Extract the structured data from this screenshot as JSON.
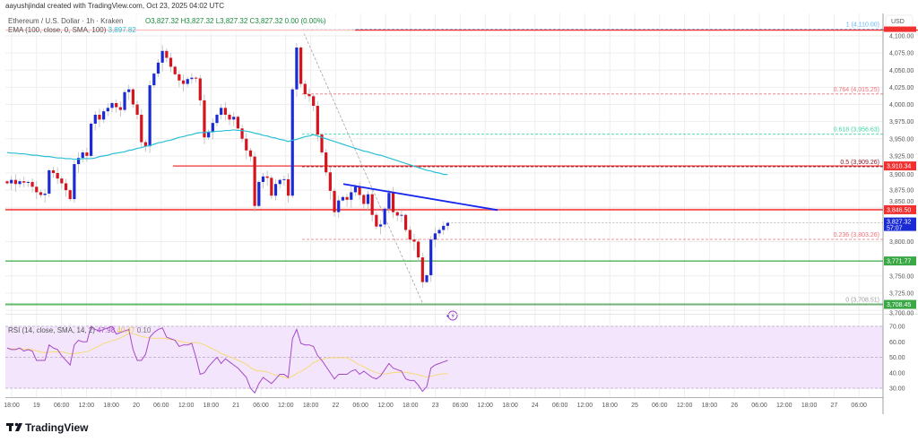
{
  "header": {
    "attribution": "aayushjindal created with TradingView.com, Oct 23, 2025 04:02 UTC",
    "symbol": "Ethereum / U.S. Dollar · 1h · Kraken",
    "ohlc": "O3,827.32  H3,827.32  L3,827.32  C3,827.32  0.00 (0.00%)",
    "ema_label": "EMA (100, close, 0, SMA, 100)",
    "ema_value": "3,897.82",
    "rsi_label": "RSI (14, close, SMA, 14, 2)",
    "rsi_value": "47.98",
    "rsi_sma_value": "40.47",
    "rsi_extra_value": "0.10"
  },
  "footer": {
    "brand": "TradingView"
  },
  "colors": {
    "up": "#1a2bd6",
    "down": "#d6141d",
    "ema": "#29bfd6",
    "rsi": "#a548c8",
    "rsi_sma": "#f6d86b",
    "rsi_band": "#f3e6fc",
    "support": "#3aa845",
    "resistance": "#f23030",
    "trendline": "#1426f0"
  },
  "chart_data": {
    "type": "candlestick",
    "currency": "USD",
    "interval": "1h",
    "price_ticks": [
      "4,100.00",
      "4,075.00",
      "4,050.00",
      "4,025.00",
      "4,000.00",
      "3,975.00",
      "3,950.00",
      "3,925.00",
      "3,900.00",
      "3,875.00",
      "3,850.00",
      "3,800.00",
      "3,750.00",
      "3,725.00",
      "3,700.00"
    ],
    "price_tick_values": [
      4100,
      4075,
      4050,
      4025,
      4000,
      3975,
      3950,
      3925,
      3900,
      3875,
      3850,
      3800,
      3750,
      3725,
      3700
    ],
    "time_labels": [
      "18:00",
      "19",
      "06:00",
      "12:00",
      "18:00",
      "20",
      "06:00",
      "12:00",
      "18:00",
      "21",
      "06:00",
      "12:00",
      "18:00",
      "22",
      "06:00",
      "12:00",
      "18:00",
      "23",
      "06:00",
      "12:00",
      "18:00",
      "24",
      "06:00",
      "12:00",
      "18:00",
      "25",
      "06:00",
      "12:00",
      "18:00",
      "26",
      "06:00",
      "12:00",
      "18:00",
      "27",
      "06:00"
    ],
    "first_candle_time": "Oct 18 18:00",
    "close": [
      3885,
      3890,
      3884,
      3888,
      3886,
      3887,
      3880,
      3872,
      3868,
      3870,
      3904,
      3900,
      3892,
      3885,
      3875,
      3862,
      3913,
      3922,
      3930,
      3925,
      3972,
      3985,
      3978,
      3990,
      3995,
      4002,
      3996,
      3992,
      4018,
      4022,
      4000,
      3985,
      3945,
      3939,
      4028,
      4045,
      4061,
      4078,
      4068,
      4055,
      4044,
      4035,
      4030,
      4037,
      4039,
      4038,
      4006,
      3952,
      3960,
      3973,
      3985,
      3995,
      3985,
      3978,
      3982,
      3965,
      3950,
      3933,
      3924,
      3852,
      3887,
      3895,
      3893,
      3867,
      3884,
      3890,
      3891,
      3867,
      4022,
      4083,
      4030,
      4015,
      4012,
      3998,
      3956,
      3930,
      3901,
      3874,
      3843,
      3860,
      3865,
      3861,
      3872,
      3880,
      3868,
      3855,
      3869,
      3839,
      3822,
      3825,
      3848,
      3871,
      3843,
      3838,
      3839,
      3817,
      3803,
      3800,
      3777,
      3741,
      3751,
      3803,
      3812,
      3817,
      3823,
      3827.32
    ],
    "ema100": [
      3930,
      3929,
      3929,
      3928,
      3928,
      3927,
      3926,
      3926,
      3925,
      3924,
      3924,
      3923,
      3922,
      3922,
      3921,
      3921,
      3920,
      3920,
      3921,
      3921,
      3921,
      3922,
      3924,
      3925,
      3926,
      3928,
      3929,
      3930,
      3931,
      3933,
      3934,
      3936,
      3937,
      3939,
      3940,
      3942,
      3944,
      3945,
      3947,
      3948,
      3950,
      3952,
      3953,
      3955,
      3956,
      3958,
      3959,
      3959,
      3960,
      3960,
      3961,
      3961,
      3962,
      3962,
      3963,
      3962,
      3962,
      3961,
      3960,
      3958,
      3957,
      3955,
      3954,
      3952,
      3951,
      3949,
      3948,
      3946,
      3948,
      3949,
      3951,
      3953,
      3954,
      3956,
      3954,
      3952,
      3950,
      3948,
      3946,
      3944,
      3942,
      3940,
      3938,
      3936,
      3934,
      3932,
      3931,
      3929,
      3927,
      3926,
      3924,
      3922,
      3920,
      3918,
      3916,
      3914,
      3912,
      3910,
      3908,
      3906,
      3904,
      3903,
      3901,
      3900,
      3898,
      3897.82
    ],
    "rsi": [
      56,
      55,
      55,
      56,
      54,
      55,
      54,
      48,
      48,
      48,
      58,
      56,
      55,
      51,
      48,
      45,
      58,
      61,
      60,
      60,
      70,
      68,
      67,
      68,
      69,
      70,
      65,
      66,
      67,
      68,
      55,
      48,
      48,
      52,
      63,
      66,
      68,
      69,
      63,
      62,
      61,
      57,
      58,
      58,
      59,
      50,
      39,
      40,
      44,
      47,
      50,
      46,
      49,
      47,
      45,
      43,
      40,
      37,
      30,
      27,
      33,
      37,
      35,
      33,
      36,
      39,
      39,
      37,
      62,
      68,
      59,
      58,
      58,
      57,
      51,
      48,
      44,
      40,
      36,
      39,
      39,
      39,
      41,
      42,
      39,
      41,
      39,
      37,
      36,
      38,
      42,
      46,
      43,
      42,
      41,
      36,
      35,
      35,
      32,
      28,
      31,
      43,
      45,
      46,
      47,
      47.98
    ],
    "rsi_ticks": [
      "70.00",
      "60.00",
      "50.00",
      "40.00",
      "30.00"
    ],
    "rsi_tick_values": [
      70,
      60,
      50,
      40,
      30
    ],
    "horizontal_levels": [
      {
        "price": 3910.34,
        "label": "3,910.34",
        "color": "#f23030"
      },
      {
        "price": 3846.5,
        "label": "3,846.50",
        "color": "#f23030"
      },
      {
        "price": 3771.77,
        "label": "3,771.77",
        "color": "#3aa845"
      },
      {
        "price": 3708.45,
        "label": "3,708.45",
        "color": "#3aa845"
      }
    ],
    "top_resistance_price": 4108.4,
    "last_price": {
      "label": "3,827.32",
      "countdown": "57:07",
      "color": "#1a2bd6"
    },
    "fibonacci": [
      {
        "ratio": "1",
        "price": 4110.0,
        "label": "1 (4,110.00)",
        "color": "#64b5f6"
      },
      {
        "ratio": "0.764",
        "price": 4015.25,
        "label": "0.764 (4,015.25)",
        "color": "#f0707a"
      },
      {
        "ratio": "0.618",
        "price": 3956.63,
        "label": "0.618 (3,956.63)",
        "color": "#3ed6a0"
      },
      {
        "ratio": "0.5",
        "price": 3909.26,
        "label": "0.5 (3,909.26)",
        "color": "#8b1a2a"
      },
      {
        "ratio": "0.236",
        "price": 3803.26,
        "label": "0.236 (3,803.26)",
        "color": "#f0707a"
      },
      {
        "ratio": "0",
        "price": 3708.51,
        "label": "0 (3,708.51)",
        "color": "#9e9e9e"
      }
    ],
    "trendline": {
      "from_price": 3884,
      "to_price": 3846
    },
    "grid": true
  }
}
